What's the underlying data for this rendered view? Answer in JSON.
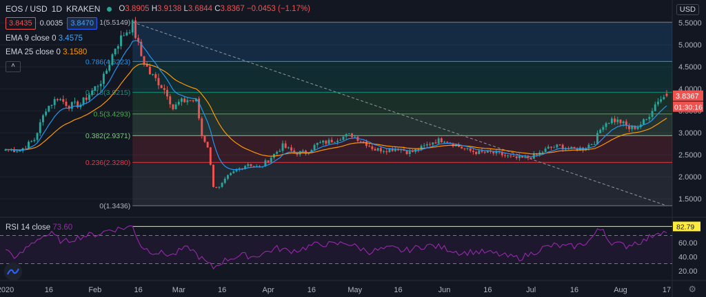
{
  "header": {
    "symbol": "EOS / USD",
    "interval": "1D",
    "exchange": "KRAKEN",
    "ohlc": {
      "o_label": "O",
      "o": "3.8905",
      "h_label": "H",
      "h": "3.9138",
      "l_label": "L",
      "l": "3.6844",
      "c_label": "C",
      "c": "3.8367",
      "change": "−0.0453 (−1.17%)"
    },
    "bid": "3.8435",
    "spread": "0.0035",
    "ask": "3.8470",
    "indicators": [
      {
        "label": "EMA 9 close 0",
        "value": "3.4575"
      },
      {
        "label": "EMA 25 close 0",
        "value": "3.1580"
      }
    ],
    "collapse_icon": "chevron-up-icon"
  },
  "currency_button": "USD",
  "rsi": {
    "label": "RSI 14 close",
    "value": "73.60"
  },
  "settings_icon": "gear-icon",
  "logo_icon": "tradingview-logo-icon",
  "colors": {
    "up": "#26a69a",
    "down": "#ef5350",
    "ema9": "#2196f3",
    "ema25": "#ff9800",
    "rsi": "#9c27b0",
    "fib0": "#787b86",
    "fib236": "#f23645",
    "fib382": "#81c784",
    "fib5": "#4caf50",
    "fib618": "#089981",
    "fib786": "#2196f3",
    "fib1": "#787b86"
  },
  "chart_data": [
    {
      "type": "candlestick",
      "title": "EOS / USD · 1D · KRAKEN",
      "ylim": [
        1.3,
        5.55
      ],
      "y_ticks": [
        1.5,
        2.0,
        2.5,
        3.0,
        3.5,
        4.0,
        4.5,
        5.0,
        5.5
      ],
      "y_tick_labels": [
        "1.5000",
        "2.0000",
        "2.5000",
        "3.0000",
        "3.5000",
        "4.0000",
        "4.5000",
        "5.0000",
        "5.5000"
      ],
      "x_ticks": [
        "2020",
        "16",
        "Feb",
        "16",
        "Mar",
        "16",
        "Apr",
        "16",
        "May",
        "16",
        "Jun",
        "16",
        "Jul",
        "16",
        "Aug",
        "17"
      ],
      "x_tick_days": [
        0,
        15,
        31,
        46,
        60,
        75,
        91,
        106,
        121,
        136,
        152,
        167,
        182,
        197,
        213,
        229
      ],
      "last_day": 229,
      "price_labels": {
        "last": "3.8367",
        "countdown": "01:30:16"
      },
      "fibonacci": [
        {
          "level": "1",
          "price": 5.5149,
          "label": "1(5.5149)"
        },
        {
          "level": "0.786",
          "price": 4.6223,
          "label": "0.786(4.6223)"
        },
        {
          "level": "0.618",
          "price": 3.9215,
          "label": "0.618(3.9215)"
        },
        {
          "level": "0.5",
          "price": 3.4293,
          "label": "0.5(3.4293)"
        },
        {
          "level": "0.382",
          "price": 2.9371,
          "label": "0.382(2.9371)"
        },
        {
          "level": "0.236",
          "price": 2.328,
          "label": "0.236(2.3280)"
        },
        {
          "level": "0",
          "price": 1.3436,
          "label": "0(1.3436)"
        }
      ],
      "fib_start_day": 44,
      "trendline": {
        "from_day": 44,
        "from_price": 5.5149,
        "to_day": 229,
        "to_price": 1.3436
      },
      "keypoints": [
        [
          0,
          2.62
        ],
        [
          5,
          2.6
        ],
        [
          10,
          2.85
        ],
        [
          14,
          3.55
        ],
        [
          18,
          3.8
        ],
        [
          22,
          3.62
        ],
        [
          26,
          3.65
        ],
        [
          30,
          3.95
        ],
        [
          34,
          4.25
        ],
        [
          38,
          4.95
        ],
        [
          41,
          5.25
        ],
        [
          44,
          5.45
        ],
        [
          47,
          4.75
        ],
        [
          50,
          4.35
        ],
        [
          53,
          4.15
        ],
        [
          56,
          3.9
        ],
        [
          58,
          3.55
        ],
        [
          60,
          3.68
        ],
        [
          63,
          3.75
        ],
        [
          66,
          3.72
        ],
        [
          68,
          2.95
        ],
        [
          70,
          2.7
        ],
        [
          72,
          1.8
        ],
        [
          74,
          1.75
        ],
        [
          77,
          2.0
        ],
        [
          80,
          2.15
        ],
        [
          84,
          2.3
        ],
        [
          88,
          2.2
        ],
        [
          92,
          2.45
        ],
        [
          96,
          2.7
        ],
        [
          100,
          2.55
        ],
        [
          104,
          2.55
        ],
        [
          108,
          2.75
        ],
        [
          112,
          2.8
        ],
        [
          116,
          2.9
        ],
        [
          120,
          2.95
        ],
        [
          124,
          2.8
        ],
        [
          128,
          2.62
        ],
        [
          132,
          2.62
        ],
        [
          136,
          2.65
        ],
        [
          140,
          2.55
        ],
        [
          144,
          2.65
        ],
        [
          148,
          2.8
        ],
        [
          152,
          2.85
        ],
        [
          156,
          2.72
        ],
        [
          160,
          2.6
        ],
        [
          164,
          2.55
        ],
        [
          168,
          2.55
        ],
        [
          172,
          2.5
        ],
        [
          176,
          2.42
        ],
        [
          180,
          2.42
        ],
        [
          184,
          2.5
        ],
        [
          188,
          2.65
        ],
        [
          192,
          2.7
        ],
        [
          196,
          2.62
        ],
        [
          200,
          2.65
        ],
        [
          204,
          2.8
        ],
        [
          207,
          3.2
        ],
        [
          210,
          3.3
        ],
        [
          213,
          3.25
        ],
        [
          216,
          3.1
        ],
        [
          219,
          3.15
        ],
        [
          222,
          3.3
        ],
        [
          224,
          3.55
        ],
        [
          226,
          3.75
        ],
        [
          229,
          3.84
        ]
      ]
    },
    {
      "type": "line",
      "title": "RSI 14 close",
      "ylim": [
        10,
        90
      ],
      "y_ticks": [
        20,
        40,
        60
      ],
      "y_tick_labels": [
        "20.00",
        "40.00",
        "60.00"
      ],
      "bands": [
        30,
        70
      ],
      "max_label": "82.79",
      "max_value": 82.79,
      "value_label": "73.60",
      "keypoints": [
        [
          0,
          50
        ],
        [
          4,
          38
        ],
        [
          8,
          55
        ],
        [
          12,
          68
        ],
        [
          16,
          72
        ],
        [
          20,
          60
        ],
        [
          24,
          66
        ],
        [
          28,
          70
        ],
        [
          32,
          72
        ],
        [
          36,
          78
        ],
        [
          40,
          80
        ],
        [
          44,
          82.8
        ],
        [
          47,
          55
        ],
        [
          50,
          48
        ],
        [
          54,
          45
        ],
        [
          58,
          42
        ],
        [
          61,
          50
        ],
        [
          64,
          52
        ],
        [
          67,
          40
        ],
        [
          70,
          30
        ],
        [
          72,
          24
        ],
        [
          75,
          33
        ],
        [
          78,
          38
        ],
        [
          82,
          42
        ],
        [
          86,
          40
        ],
        [
          90,
          46
        ],
        [
          94,
          52
        ],
        [
          98,
          48
        ],
        [
          102,
          50
        ],
        [
          106,
          56
        ],
        [
          110,
          58
        ],
        [
          114,
          57
        ],
        [
          118,
          60
        ],
        [
          122,
          53
        ],
        [
          126,
          47
        ],
        [
          130,
          50
        ],
        [
          134,
          52
        ],
        [
          138,
          48
        ],
        [
          142,
          52
        ],
        [
          146,
          56
        ],
        [
          150,
          54
        ],
        [
          154,
          50
        ],
        [
          158,
          45
        ],
        [
          162,
          47
        ],
        [
          166,
          46
        ],
        [
          170,
          44
        ],
        [
          174,
          40
        ],
        [
          178,
          38
        ],
        [
          182,
          44
        ],
        [
          186,
          52
        ],
        [
          190,
          56
        ],
        [
          194,
          54
        ],
        [
          198,
          55
        ],
        [
          202,
          62
        ],
        [
          205,
          76
        ],
        [
          207,
          80
        ],
        [
          209,
          62
        ],
        [
          212,
          58
        ],
        [
          215,
          55
        ],
        [
          218,
          60
        ],
        [
          221,
          62
        ],
        [
          224,
          70
        ],
        [
          226,
          76
        ],
        [
          229,
          73.6
        ]
      ]
    }
  ]
}
